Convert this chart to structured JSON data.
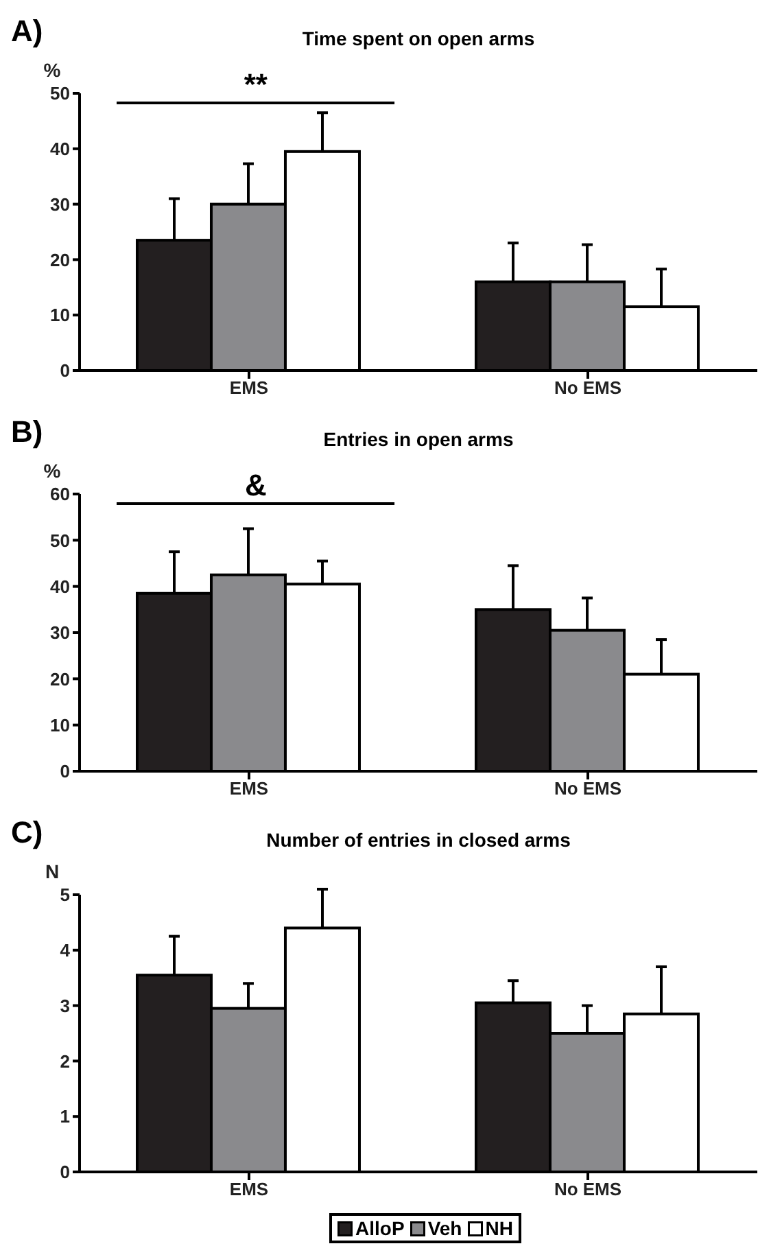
{
  "chart_data": [
    {
      "type": "bar",
      "title": "Time spent on open arms",
      "ylabel": "%",
      "annotations": [
        "A)",
        "**"
      ],
      "categories": [
        "EMS",
        "No EMS"
      ],
      "series": [
        {
          "color": "#231f20",
          "values": [
            23.5,
            16
          ],
          "errors": [
            [
              23.5,
              31
            ],
            [
              16,
              23
            ]
          ]
        },
        {
          "color": "#8a8a8d",
          "values": [
            30,
            16
          ],
          "errors": [
            [
              30,
              37.3
            ],
            [
              16,
              22.7
            ]
          ]
        },
        {
          "color": "#ffffff",
          "values": [
            39.5,
            11.5
          ],
          "errors": [
            [
              39.5,
              46.5
            ],
            [
              11.5,
              18.3
            ]
          ]
        }
      ],
      "ylim": [
        0,
        50
      ],
      "yticks": [
        0,
        10,
        20,
        30,
        40,
        50
      ],
      "grid": false,
      "legend": false
    },
    {
      "type": "bar",
      "title": "Entries in open arms",
      "ylabel": "%",
      "annotations": [
        "B)",
        "&"
      ],
      "categories": [
        "EMS",
        "No EMS"
      ],
      "series": [
        {
          "color": "#231f20",
          "values": [
            38.5,
            35
          ],
          "errors": [
            [
              38.5,
              47.5
            ],
            [
              35,
              44.5
            ]
          ]
        },
        {
          "color": "#8a8a8d",
          "values": [
            42.5,
            30.5
          ],
          "errors": [
            [
              42.5,
              52.5
            ],
            [
              30.5,
              37.5
            ]
          ]
        },
        {
          "color": "#ffffff",
          "values": [
            40.5,
            21
          ],
          "errors": [
            [
              40.5,
              45.5
            ],
            [
              21,
              28.5
            ]
          ]
        }
      ],
      "ylim": [
        0,
        60
      ],
      "yticks": [
        0,
        10,
        20,
        30,
        40,
        50,
        60
      ],
      "grid": false,
      "legend": false
    },
    {
      "type": "bar",
      "title": "Number of entries in closed arms",
      "ylabel": "N",
      "annotations": [
        "C)"
      ],
      "categories": [
        "EMS",
        "No EMS"
      ],
      "series": [
        {
          "name": "AlloP",
          "color": "#231f20",
          "values": [
            3.55,
            3.05
          ],
          "errors": [
            [
              3.55,
              4.25
            ],
            [
              3.05,
              3.45
            ]
          ]
        },
        {
          "name": "Veh",
          "color": "#8a8a8d",
          "values": [
            2.95,
            2.5
          ],
          "errors": [
            [
              2.95,
              3.4
            ],
            [
              2.5,
              3.0
            ]
          ]
        },
        {
          "name": "NH",
          "color": "#ffffff",
          "values": [
            4.4,
            2.85
          ],
          "errors": [
            [
              4.4,
              5.1
            ],
            [
              2.85,
              3.7
            ]
          ]
        }
      ],
      "ylim": [
        0,
        5
      ],
      "yticks": [
        0,
        1,
        2,
        3,
        4,
        5
      ],
      "grid": false,
      "legend": "bottom"
    }
  ]
}
